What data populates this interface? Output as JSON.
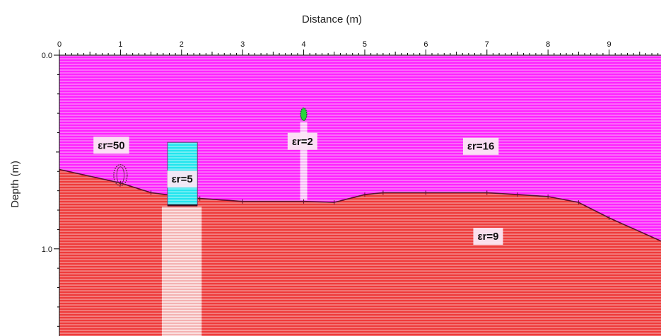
{
  "x_axis": {
    "title": "Distance (m)",
    "ticks": [
      "0",
      "1",
      "2",
      "3",
      "4",
      "5",
      "6",
      "7",
      "8",
      "9"
    ],
    "range": [
      0,
      9.85
    ]
  },
  "y_axis": {
    "title": "Depth (m)",
    "ticks": [
      "0.0",
      "1.0"
    ],
    "range": [
      0,
      1.45
    ]
  },
  "colors": {
    "upper_layer": "#ff22ff",
    "upper_layer_stripe": "#f4c6f4",
    "lower_layer": "#ee3b3b",
    "lower_layer_stripe": "#f7c2c2",
    "water_pipe": "#22e5ee",
    "void_target": "#29d63a",
    "boundary_line": "#5a1030"
  },
  "layers": {
    "upper": {
      "label": "εr=16"
    },
    "lower": {
      "label": "εr=9"
    }
  },
  "interface_depths": [
    [
      0,
      0.59
    ],
    [
      1.0,
      0.66
    ],
    [
      1.5,
      0.71
    ],
    [
      2.0,
      0.73
    ],
    [
      2.3,
      0.74
    ],
    [
      3.0,
      0.755
    ],
    [
      4.0,
      0.755
    ],
    [
      4.5,
      0.76
    ],
    [
      5.0,
      0.72
    ],
    [
      5.3,
      0.71
    ],
    [
      6.0,
      0.71
    ],
    [
      7.0,
      0.71
    ],
    [
      7.5,
      0.72
    ],
    [
      8.0,
      0.73
    ],
    [
      8.5,
      0.76
    ],
    [
      9.0,
      0.84
    ],
    [
      9.85,
      0.96
    ]
  ],
  "objects": [
    {
      "id": "object-er50",
      "label": "εr=50",
      "shape": "ellipse",
      "x_center": 1.0,
      "depth_center": 0.62,
      "width": 0.22,
      "height": 0.11
    },
    {
      "id": "object-er5",
      "label": "εr=5",
      "shape": "rectangle",
      "x_min": 1.77,
      "x_max": 2.26,
      "depth_min": 0.45,
      "depth_max": 0.775
    },
    {
      "id": "object-er2",
      "label": "εr=2",
      "shape": "ellipse",
      "x_center": 4.0,
      "depth_center": 0.305,
      "width": 0.1,
      "height": 0.065
    }
  ]
}
